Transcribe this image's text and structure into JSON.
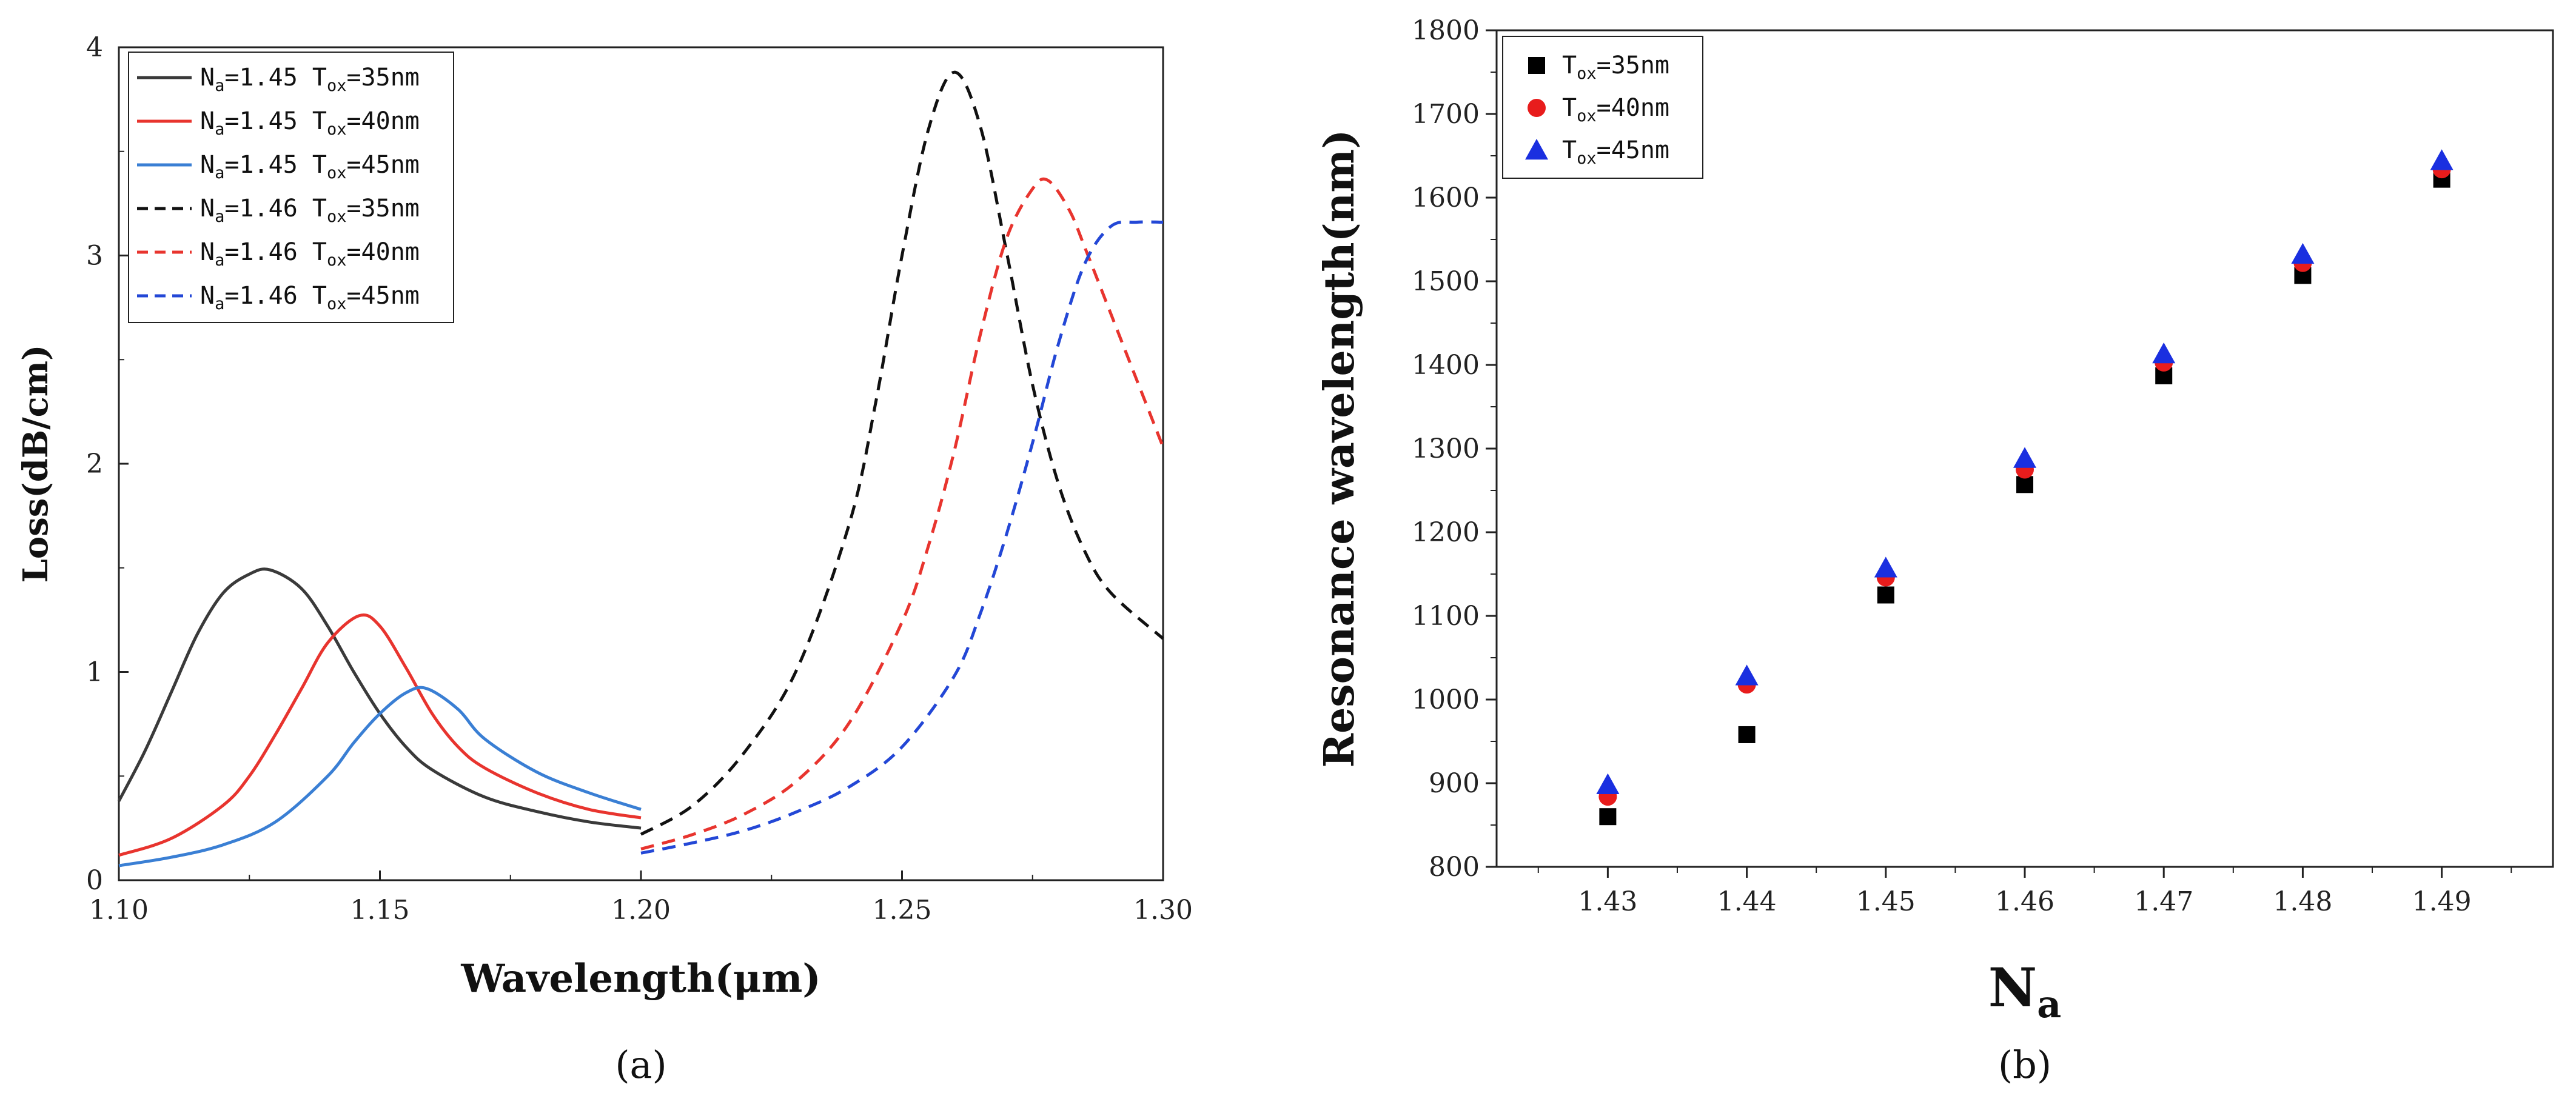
{
  "chart_data": [
    {
      "type": "line",
      "panel_label": "(a)",
      "xlabel": "Wavelength(μm)",
      "ylabel": "Loss(dB/cm)",
      "xlim": [
        1.1,
        1.3
      ],
      "ylim": [
        0,
        4
      ],
      "xticks": [
        "1.10",
        "1.15",
        "1.20",
        "1.25",
        "1.30"
      ],
      "yticks": [
        "0",
        "1",
        "2",
        "3",
        "4"
      ],
      "legend_position": "top-left",
      "series": [
        {
          "name": "Na=1.45 Tox=35nm",
          "n_base": "N",
          "n_sub": "a",
          "n_rest": "=1.45 T",
          "t_sub": "ox",
          "t_rest": "=35nm",
          "color": "#3a3a3a",
          "dash": "solid",
          "x": [
            1.1,
            1.105,
            1.11,
            1.115,
            1.12,
            1.125,
            1.129,
            1.135,
            1.14,
            1.145,
            1.15,
            1.155,
            1.16,
            1.17,
            1.18,
            1.19,
            1.2
          ],
          "y": [
            0.38,
            0.62,
            0.9,
            1.18,
            1.38,
            1.47,
            1.49,
            1.4,
            1.22,
            1.0,
            0.8,
            0.64,
            0.53,
            0.4,
            0.33,
            0.28,
            0.25
          ]
        },
        {
          "name": "Na=1.45 Tox=40nm",
          "n_base": "N",
          "n_sub": "a",
          "n_rest": "=1.45 T",
          "t_sub": "ox",
          "t_rest": "=40nm",
          "color": "#e8342e",
          "dash": "solid",
          "x": [
            1.1,
            1.11,
            1.12,
            1.125,
            1.13,
            1.135,
            1.14,
            1.146,
            1.15,
            1.155,
            1.16,
            1.165,
            1.17,
            1.18,
            1.19,
            1.2
          ],
          "y": [
            0.12,
            0.2,
            0.36,
            0.5,
            0.7,
            0.92,
            1.14,
            1.27,
            1.22,
            1.02,
            0.8,
            0.64,
            0.54,
            0.42,
            0.34,
            0.3
          ]
        },
        {
          "name": "Na=1.45 Tox=45nm",
          "n_base": "N",
          "n_sub": "a",
          "n_rest": "=1.45 T",
          "t_sub": "ox",
          "t_rest": "=45nm",
          "color": "#3a7fd4",
          "dash": "solid",
          "x": [
            1.1,
            1.11,
            1.12,
            1.13,
            1.14,
            1.145,
            1.15,
            1.155,
            1.159,
            1.165,
            1.17,
            1.18,
            1.19,
            1.2
          ],
          "y": [
            0.07,
            0.11,
            0.17,
            0.28,
            0.5,
            0.66,
            0.8,
            0.9,
            0.92,
            0.82,
            0.68,
            0.52,
            0.42,
            0.34
          ]
        },
        {
          "name": "Na=1.46 Tox=35nm",
          "n_base": "N",
          "n_sub": "a",
          "n_rest": "=1.46 T",
          "t_sub": "ox",
          "t_rest": "=35nm",
          "color": "#111111",
          "dash": "dashed",
          "x": [
            1.2,
            1.21,
            1.22,
            1.23,
            1.24,
            1.245,
            1.25,
            1.255,
            1.26,
            1.265,
            1.27,
            1.275,
            1.28,
            1.285,
            1.29,
            1.3
          ],
          "y": [
            0.22,
            0.36,
            0.62,
            1.02,
            1.72,
            2.3,
            3.0,
            3.6,
            3.88,
            3.62,
            3.02,
            2.38,
            1.9,
            1.58,
            1.38,
            1.16
          ]
        },
        {
          "name": "Na=1.46 Tox=40nm",
          "n_base": "N",
          "n_sub": "a",
          "n_rest": "=1.46 T",
          "t_sub": "ox",
          "t_rest": "=40nm",
          "color": "#e8342e",
          "dash": "dashed",
          "x": [
            1.2,
            1.21,
            1.22,
            1.23,
            1.24,
            1.25,
            1.255,
            1.26,
            1.265,
            1.27,
            1.275,
            1.278,
            1.282,
            1.285,
            1.29,
            1.295,
            1.3
          ],
          "y": [
            0.15,
            0.22,
            0.32,
            0.48,
            0.76,
            1.24,
            1.6,
            2.06,
            2.62,
            3.08,
            3.32,
            3.36,
            3.22,
            3.04,
            2.72,
            2.4,
            2.08
          ]
        },
        {
          "name": "Na=1.46 Tox=45nm",
          "n_base": "N",
          "n_sub": "a",
          "n_rest": "=1.46 T",
          "t_sub": "ox",
          "t_rest": "=45nm",
          "color": "#2347d6",
          "dash": "dashed",
          "x": [
            1.2,
            1.21,
            1.22,
            1.23,
            1.24,
            1.25,
            1.26,
            1.265,
            1.27,
            1.275,
            1.28,
            1.285,
            1.29,
            1.295,
            1.3
          ],
          "y": [
            0.13,
            0.18,
            0.24,
            0.33,
            0.45,
            0.64,
            0.98,
            1.28,
            1.66,
            2.1,
            2.58,
            2.96,
            3.14,
            3.16,
            3.16
          ]
        }
      ]
    },
    {
      "type": "scatter",
      "panel_label": "(b)",
      "xlabel_base": "N",
      "xlabel_sub": "a",
      "ylabel": "Resonance wavelength(nm)",
      "xlim": [
        1.422,
        1.498
      ],
      "ylim": [
        800,
        1800
      ],
      "xticks": [
        "1.43",
        "1.44",
        "1.45",
        "1.46",
        "1.47",
        "1.48",
        "1.49"
      ],
      "yticks": [
        "800",
        "900",
        "1000",
        "1100",
        "1200",
        "1300",
        "1400",
        "1500",
        "1600",
        "1700",
        "1800"
      ],
      "legend_position": "top-left",
      "x": [
        1.43,
        1.44,
        1.45,
        1.46,
        1.47,
        1.48,
        1.49
      ],
      "series": [
        {
          "name": "Tox=35nm",
          "t_base": "T",
          "t_sub": "ox",
          "t_rest": "=35nm",
          "color": "#000000",
          "marker": "square",
          "values": [
            860,
            958,
            1125,
            1257,
            1387,
            1507,
            1622
          ]
        },
        {
          "name": "Tox=40nm",
          "t_base": "T",
          "t_sub": "ox",
          "t_rest": "=40nm",
          "color": "#e81c1c",
          "marker": "circle",
          "values": [
            884,
            1018,
            1146,
            1275,
            1403,
            1522,
            1634
          ]
        },
        {
          "name": "Tox=45nm",
          "t_base": "T",
          "t_sub": "ox",
          "t_rest": "=45nm",
          "color": "#1a2fe0",
          "marker": "triangle",
          "values": [
            898,
            1028,
            1157,
            1288,
            1413,
            1532,
            1644
          ]
        }
      ]
    }
  ]
}
